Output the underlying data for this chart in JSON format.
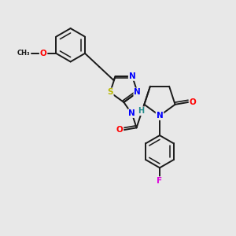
{
  "bg_color": "#e8e8e8",
  "bond_color": "#1a1a1a",
  "bond_width": 1.4,
  "atom_colors": {
    "N": "#0000ff",
    "O": "#ff0000",
    "S": "#b8b800",
    "F": "#dd00dd",
    "H": "#228b8b",
    "C": "#1a1a1a"
  },
  "figsize": [
    3.0,
    3.0
  ],
  "dpi": 100
}
